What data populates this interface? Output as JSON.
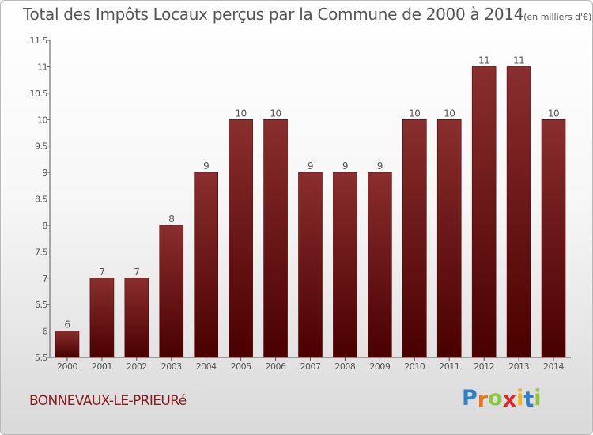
{
  "title": "Total des Impôts Locaux perçus par la Commune de 2000 à 2014",
  "unit": "(en milliers d'€)",
  "commune": "BONNEVAUX-LE-PRIEURé",
  "logo": {
    "letters": [
      "P",
      "r",
      "o",
      "x",
      "i",
      "t",
      "i"
    ],
    "colors": [
      "#2f7fc9",
      "#e8741e",
      "#8cc63f",
      "#e3262a",
      "#f0b41c",
      "#2f7fc9",
      "#8cc63f"
    ]
  },
  "colors": {
    "bar_top": "#8a2e2e",
    "bar_bottom": "#4a0000",
    "axis": "#555555",
    "text": "#555555"
  },
  "chart_data": {
    "type": "bar",
    "title": "Total des Impôts Locaux perçus par la Commune de 2000 à 2014",
    "xlabel": "",
    "ylabel": "",
    "categories": [
      "2000",
      "2001",
      "2002",
      "2003",
      "2004",
      "2005",
      "2006",
      "2007",
      "2008",
      "2009",
      "2010",
      "2011",
      "2012",
      "2013",
      "2014"
    ],
    "values": [
      6,
      7,
      7,
      8,
      9,
      10,
      10,
      9,
      9,
      9,
      10,
      10,
      11,
      11,
      10
    ],
    "value_labels": [
      "6",
      "7",
      "7",
      "8",
      "9",
      "10",
      "10",
      "9",
      "9",
      "9",
      "10",
      "10",
      "11",
      "11",
      "10"
    ],
    "ylim": [
      5.5,
      11.5
    ],
    "yticks": [
      5.5,
      6,
      6.5,
      7,
      7.5,
      8,
      8.5,
      9,
      9.5,
      10,
      10.5,
      11,
      11.5
    ],
    "ytick_labels": [
      "5.5",
      "6",
      "6.5",
      "7",
      "7.5",
      "8",
      "8.5",
      "9",
      "9.5",
      "10",
      "10.5",
      "11",
      "11.5"
    ],
    "grid": false
  }
}
